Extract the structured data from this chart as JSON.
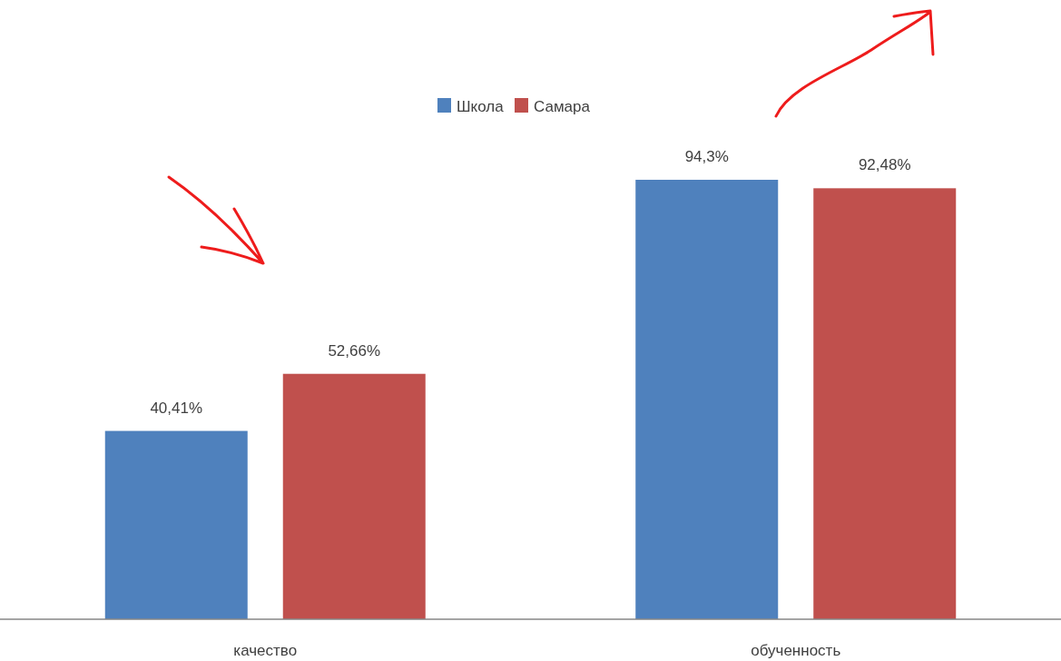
{
  "chart_data": {
    "type": "bar",
    "categories": [
      "качество",
      "обученность"
    ],
    "series": [
      {
        "name": "Школа",
        "color": "#4f81bd",
        "values": [
          40.41,
          94.3
        ],
        "value_labels": [
          "40,41%",
          "94,3%"
        ]
      },
      {
        "name": "Самара",
        "color": "#c0504d",
        "values": [
          52.66,
          92.48
        ],
        "value_labels": [
          "52,66%",
          "92,48%"
        ]
      }
    ],
    "legend": "top"
  }
}
